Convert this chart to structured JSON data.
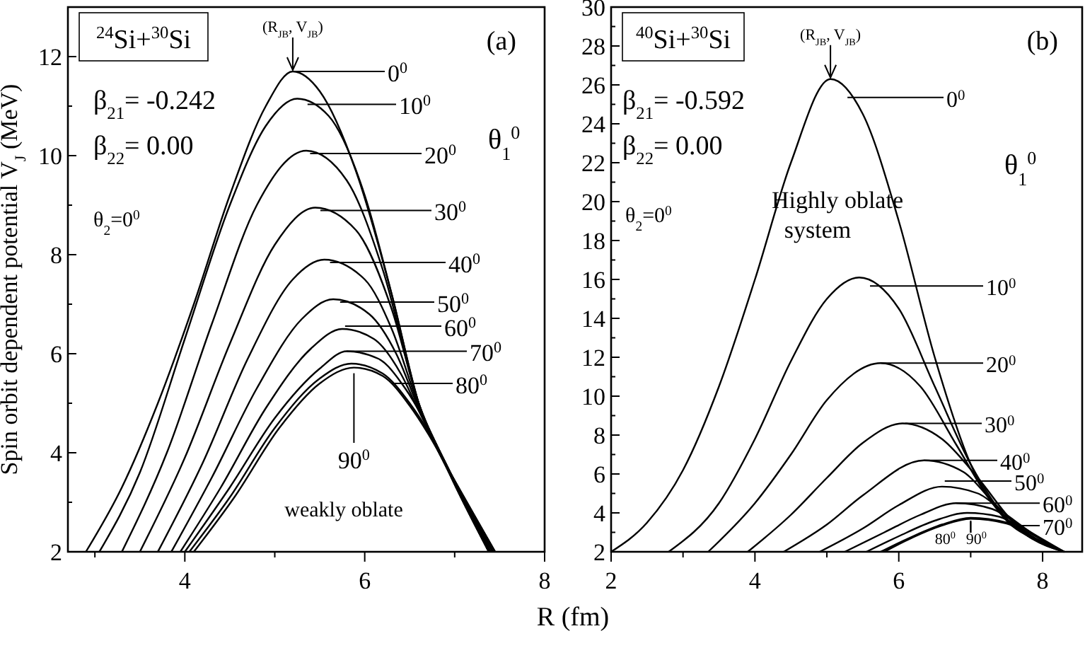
{
  "chart_data": [
    {
      "type": "line",
      "legend": "top right",
      "title": "$^{24}$Si+$^{30}$Si",
      "ylabel": "Spin orbit dependent potential V$_{J}$ (MeV)",
      "legend_title": "θ$_{1}$$^{0}$",
      "xlim": [
        2.7,
        8
      ],
      "xticks": [
        {
          "value": 3,
          "label": null
        },
        4,
        {
          "value": 5,
          "label": null
        },
        6,
        {
          "value": 7,
          "label": null
        },
        8
      ],
      "ylim": [
        2,
        13
      ],
      "yticks": [
        2,
        {
          "value": 3,
          "label": null
        },
        4,
        {
          "value": 5,
          "label": null
        },
        6,
        {
          "value": 7,
          "label": null
        },
        8,
        {
          "value": 9,
          "label": null
        },
        10,
        {
          "value": 11,
          "label": null
        },
        12
      ],
      "annotations": [
        {
          "text": "(R$_{JB}$, V$_{JB}$)",
          "x": 5.2,
          "y": 11.7
        },
        "(a)",
        "β$_{21}$= -0.242",
        "β$_{22}$= 0.00",
        "θ$_{2}$=0$^{0}$",
        "weakly oblate"
      ],
      "series": [
        {
          "name": "0$^{0}$",
          "color": "#000000",
          "x": [
            2.9,
            3.3,
            3.7,
            4.1,
            4.5,
            4.9,
            5.2,
            5.5,
            5.9,
            6.3,
            6.6,
            6.95,
            7.38
          ],
          "values": [
            2,
            3.3,
            5,
            7,
            9.2,
            11,
            11.7,
            11.3,
            9.7,
            7.2,
            5,
            3.55,
            2
          ]
        },
        {
          "name": "10$^{0}$",
          "color": "#000000",
          "x": [
            3.05,
            3.5,
            4,
            4.5,
            4.9,
            5.25,
            5.6,
            6,
            6.3,
            6.6,
            6.95,
            7.38
          ],
          "values": [
            2,
            3.6,
            6.3,
            9,
            10.6,
            11.15,
            10.8,
            9.2,
            7.2,
            5,
            3.55,
            2
          ]
        },
        {
          "name": "20$^{0}$",
          "color": "#000000",
          "x": [
            3.3,
            3.8,
            4.3,
            4.8,
            5.35,
            5.8,
            6.2,
            6.6,
            6.95,
            7.38
          ],
          "values": [
            2,
            4,
            6.6,
            9,
            10.1,
            9.5,
            7.7,
            5,
            3.6,
            2
          ]
        },
        {
          "name": "30$^{0}$",
          "color": "#000000",
          "x": [
            3.5,
            4,
            4.5,
            5,
            5.45,
            5.9,
            6.3,
            6.6,
            6.95,
            7.38
          ],
          "values": [
            2,
            3.9,
            6.2,
            8.2,
            8.95,
            8.5,
            6.9,
            5,
            3.6,
            2
          ]
        },
        {
          "name": "40$^{0}$",
          "color": "#000000",
          "x": [
            3.7,
            4.2,
            4.7,
            5.2,
            5.55,
            6,
            6.3,
            6.6,
            6.95,
            7.4
          ],
          "values": [
            2,
            3.8,
            5.9,
            7.5,
            7.9,
            7.5,
            6.5,
            4.95,
            3.6,
            2
          ]
        },
        {
          "name": "50$^{0}$",
          "color": "#000000",
          "x": [
            3.85,
            4.3,
            4.8,
            5.3,
            5.65,
            6.05,
            6.35,
            6.6,
            6.95,
            7.4
          ],
          "values": [
            2,
            3.5,
            5.3,
            6.7,
            7.1,
            6.8,
            6,
            4.9,
            3.6,
            2
          ]
        },
        {
          "name": "60$^{0}$",
          "color": "#000000",
          "x": [
            3.95,
            4.4,
            4.9,
            5.4,
            5.75,
            6.1,
            6.4,
            6.6,
            6.95,
            7.42
          ],
          "values": [
            2,
            3.3,
            4.9,
            6.1,
            6.5,
            6.3,
            5.6,
            4.85,
            3.6,
            2
          ]
        },
        {
          "name": "70$^{0}$",
          "color": "#000000",
          "x": [
            4,
            4.5,
            5,
            5.5,
            5.8,
            6.15,
            6.45,
            6.65,
            6.95,
            7.43
          ],
          "values": [
            2,
            3.3,
            4.7,
            5.7,
            6.05,
            5.9,
            5.3,
            4.7,
            3.6,
            2
          ]
        },
        {
          "name": "80$^{0}$",
          "color": "#000000",
          "x": [
            4.05,
            4.5,
            5,
            5.5,
            5.85,
            6.2,
            6.5,
            6.7,
            6.95,
            7.45
          ],
          "values": [
            2,
            3.1,
            4.5,
            5.5,
            5.8,
            5.6,
            5,
            4.45,
            3.6,
            2
          ]
        },
        {
          "name": "90$^{0}$",
          "color": "#000000",
          "x": [
            4.1,
            4.55,
            5.05,
            5.5,
            5.88,
            6.2,
            6.5,
            6.7,
            6.95,
            7.45
          ],
          "values": [
            2,
            3.1,
            4.5,
            5.4,
            5.72,
            5.55,
            4.95,
            4.4,
            3.6,
            2
          ]
        }
      ]
    },
    {
      "type": "line",
      "legend": "right",
      "title": "$^{40}$Si+$^{30}$Si",
      "xlabel": "R (fm)",
      "legend_title": "θ$_{1}$$^{0}$",
      "xlim": [
        2,
        8.55
      ],
      "xticks": [
        2,
        {
          "value": 3,
          "label": null
        },
        4,
        {
          "value": 5,
          "label": null
        },
        6,
        {
          "value": 7,
          "label": null
        },
        8
      ],
      "ylim": [
        2,
        30
      ],
      "yticks": [
        2,
        {
          "value": 3,
          "label": null
        },
        4,
        {
          "value": 5,
          "label": null
        },
        6,
        {
          "value": 7,
          "label": null
        },
        8,
        {
          "value": 9,
          "label": null
        },
        10,
        {
          "value": 11,
          "label": null
        },
        12,
        {
          "value": 13,
          "label": null
        },
        14,
        {
          "value": 15,
          "label": null
        },
        16,
        {
          "value": 17,
          "label": null
        },
        18,
        {
          "value": 19,
          "label": null
        },
        20,
        {
          "value": 21,
          "label": null
        },
        22,
        {
          "value": 23,
          "label": null
        },
        24,
        {
          "value": 25,
          "label": null
        },
        26,
        {
          "value": 27,
          "label": null
        },
        28,
        {
          "value": 29,
          "label": null
        },
        30
      ],
      "annotations": [
        {
          "text": "(R$_{JB}$, V$_{JB}$)",
          "x": 5.05,
          "y": 26.3
        },
        "(b)",
        "β$_{21}$= -0.592",
        "β$_{22}$= 0.00",
        "θ$_{2}$=0$^{0}$",
        "Highly oblate system"
      ],
      "series": [
        {
          "name": "0$^{0}$",
          "color": "#000000",
          "x": [
            2,
            2.5,
            3,
            3.5,
            4,
            4.5,
            5.05,
            5.5,
            6,
            6.5,
            7,
            7.5,
            8,
            8.3
          ],
          "values": [
            2,
            3.5,
            6.2,
            10.5,
            16,
            22,
            26.3,
            24.5,
            19,
            12,
            6.5,
            3.6,
            2.5,
            2
          ]
        },
        {
          "name": "10$^{0}$",
          "color": "#000000",
          "x": [
            2.8,
            3.5,
            4,
            4.5,
            5,
            5.45,
            6,
            6.5,
            7,
            7.5,
            8,
            8.3
          ],
          "values": [
            2,
            4.5,
            7.8,
            11.8,
            15,
            16.1,
            14.5,
            10.5,
            6.5,
            3.7,
            2.4,
            2
          ]
        },
        {
          "name": "20$^{0}$",
          "color": "#000000",
          "x": [
            3.35,
            4,
            4.5,
            5,
            5.75,
            6.3,
            6.8,
            7.3,
            7.8,
            8.3
          ],
          "values": [
            2,
            4.5,
            7,
            9.8,
            11.7,
            10.5,
            7.5,
            4.5,
            2.8,
            2
          ]
        },
        {
          "name": "30$^{0}$",
          "color": "#000000",
          "x": [
            3.9,
            4.5,
            5,
            5.5,
            6.05,
            6.6,
            7.1,
            7.6,
            8.3
          ],
          "values": [
            2,
            3.9,
            5.8,
            7.6,
            8.6,
            7.8,
            5.8,
            3.5,
            2
          ]
        },
        {
          "name": "40$^{0}$",
          "color": "#000000",
          "x": [
            4.4,
            5,
            5.5,
            6.35,
            6.9,
            7.3,
            7.8,
            8.3
          ],
          "values": [
            2,
            3.4,
            4.9,
            6.7,
            6.1,
            4.6,
            2.9,
            2
          ]
        },
        {
          "name": "50$^{0}$",
          "color": "#000000",
          "x": [
            4.9,
            5.5,
            6,
            6.6,
            7.1,
            7.5,
            8,
            8.3
          ],
          "values": [
            2,
            3.2,
            4.4,
            5.35,
            5,
            3.9,
            2.6,
            2
          ]
        },
        {
          "name": "60$^{0}$",
          "color": "#000000",
          "x": [
            5.25,
            5.8,
            6.3,
            6.8,
            7.3,
            7.7,
            8.3
          ],
          "values": [
            2,
            3,
            3.9,
            4.5,
            4.2,
            3.3,
            2
          ]
        },
        {
          "name": "70$^{0}$",
          "color": "#000000",
          "x": [
            5.55,
            6,
            6.5,
            6.95,
            7.4,
            7.8,
            8.3
          ],
          "values": [
            2,
            2.8,
            3.6,
            4,
            3.8,
            3,
            2
          ]
        },
        {
          "name": "80$^{0}$",
          "color": "#000000",
          "x": [
            5.75,
            6.2,
            6.6,
            7,
            7.5,
            7.9,
            8.3
          ],
          "values": [
            2,
            2.8,
            3.4,
            3.75,
            3.5,
            2.7,
            2
          ]
        },
        {
          "name": "90$^{0}$",
          "color": "#000000",
          "x": [
            5.8,
            6.2,
            6.6,
            7,
            7.5,
            7.9,
            8.3
          ],
          "values": [
            2,
            2.75,
            3.35,
            3.7,
            3.45,
            2.65,
            2
          ]
        }
      ]
    }
  ]
}
